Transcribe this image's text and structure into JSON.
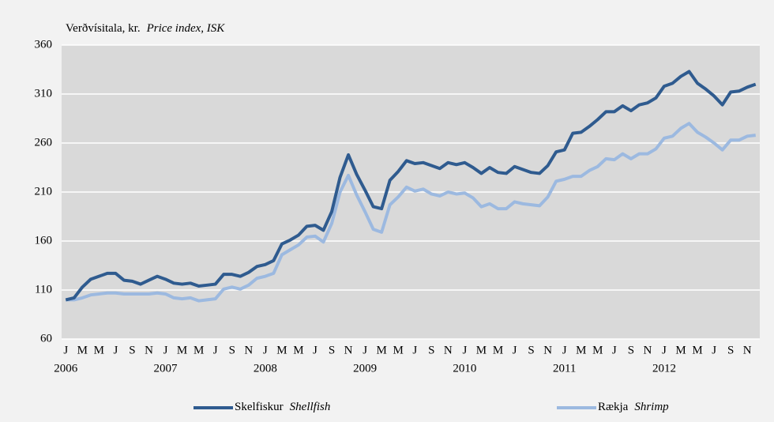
{
  "chart_data": {
    "type": "line",
    "title": "Verðvísitala, kr.",
    "subtitle": "Price index, ISK",
    "categories": [
      "J",
      null,
      "M",
      null,
      "M",
      null,
      "J",
      null,
      "S",
      null,
      "N",
      null,
      "J",
      null,
      "M",
      null,
      "M",
      null,
      "J",
      null,
      "S",
      null,
      "N",
      null,
      "J",
      null,
      "M",
      null,
      "M",
      null,
      "J",
      null,
      "S",
      null,
      "N",
      null,
      "J",
      null,
      "M",
      null,
      "M",
      null,
      "J",
      null,
      "S",
      null,
      "N",
      null,
      "J",
      null,
      "M",
      null,
      "M",
      null,
      "J",
      null,
      "S",
      null,
      "N",
      null,
      "J",
      null,
      "M",
      null,
      "M",
      null,
      "J",
      null,
      "S",
      null,
      "N",
      null,
      "J",
      null,
      "M",
      null,
      "M",
      null,
      "J",
      null,
      "S",
      null,
      "N",
      null
    ],
    "years": [
      "2006",
      "2007",
      "2008",
      "2009",
      "2010",
      "2011",
      "2012"
    ],
    "series": [
      {
        "name": "Skelfiskur",
        "name_en": "Shellfish",
        "color": "#2f5b8f",
        "values": [
          100,
          102,
          113,
          121,
          124,
          127,
          127,
          120,
          119,
          116,
          120,
          124,
          121,
          117,
          116,
          117,
          114,
          115,
          116,
          126,
          126,
          124,
          128,
          134,
          136,
          140,
          157,
          161,
          166,
          175,
          176,
          171,
          190,
          225,
          248,
          228,
          212,
          195,
          193,
          222,
          231,
          242,
          239,
          240,
          237,
          234,
          240,
          238,
          240,
          235,
          229,
          235,
          230,
          229,
          236,
          233,
          230,
          229,
          237,
          251,
          253,
          270,
          271,
          277,
          284,
          292,
          292,
          298,
          293,
          299,
          301,
          306,
          318,
          321,
          328,
          333,
          321,
          315,
          308,
          299,
          312,
          313,
          317,
          320
        ]
      },
      {
        "name": "Rækja",
        "name_en": "Shrimp",
        "color": "#9cb9e0",
        "values": [
          100,
          100,
          102,
          105,
          106,
          107,
          107,
          106,
          106,
          106,
          106,
          107,
          106,
          102,
          101,
          102,
          99,
          100,
          101,
          111,
          113,
          111,
          115,
          122,
          124,
          127,
          146,
          151,
          156,
          164,
          165,
          159,
          178,
          210,
          227,
          207,
          190,
          172,
          169,
          197,
          205,
          215,
          211,
          213,
          208,
          206,
          210,
          208,
          209,
          204,
          195,
          198,
          193,
          193,
          200,
          198,
          197,
          196,
          205,
          221,
          223,
          226,
          226,
          232,
          236,
          244,
          243,
          249,
          244,
          249,
          249,
          254,
          265,
          267,
          275,
          280,
          271,
          266,
          260,
          253,
          263,
          263,
          267,
          268
        ]
      }
    ],
    "ylim": [
      60,
      360
    ],
    "yticks": [
      60,
      110,
      160,
      210,
      260,
      310,
      360
    ],
    "grid": true
  }
}
